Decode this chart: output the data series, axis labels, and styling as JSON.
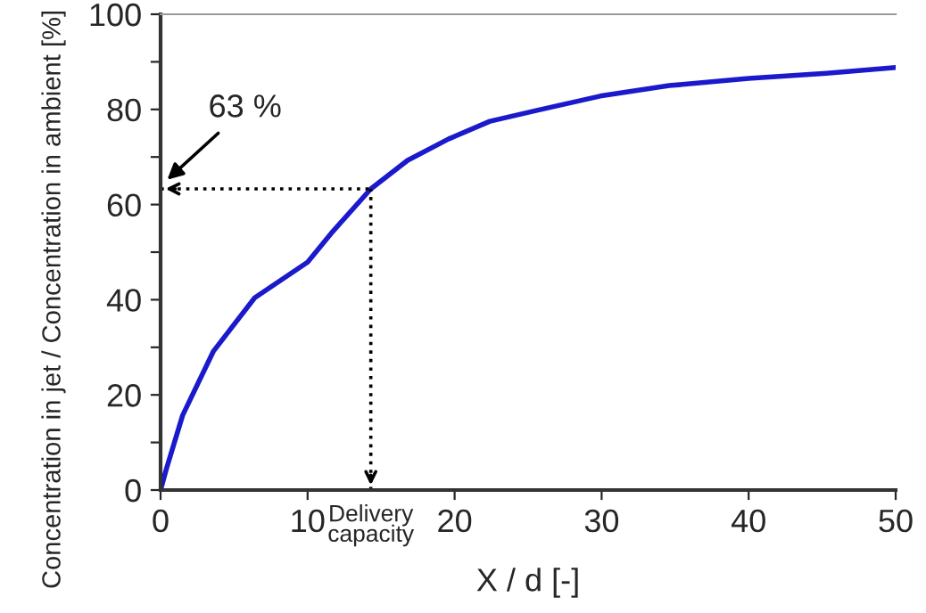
{
  "chart_data": {
    "type": "line",
    "xlabel": "X / d [-]",
    "ylabel": "Concentration in jet / Concentration in ambient [%]",
    "x": [
      0,
      0.4,
      1.5,
      3.6,
      6.4,
      10,
      11.7,
      14.3,
      16.8,
      19.6,
      22.4,
      25.6,
      29.9,
      34.6,
      40,
      45.3,
      50
    ],
    "series": [
      {
        "color": "#1a1acc",
        "values": [
          0,
          4.5,
          15.7,
          29.2,
          40.4,
          47.9,
          54.3,
          63.3,
          69.3,
          73.8,
          77.5,
          79.8,
          82.8,
          85.0,
          86.5,
          87.6,
          88.8
        ]
      }
    ],
    "xlim": [
      0,
      50
    ],
    "xticks": [
      0,
      10,
      20,
      30,
      40,
      50
    ],
    "ylim": [
      0,
      100
    ],
    "yticks": [
      0,
      {
        "value": 10,
        "label": null
      },
      20,
      {
        "value": 30,
        "label": null
      },
      40,
      {
        "value": 50,
        "label": null
      },
      60,
      {
        "value": 70,
        "label": null
      },
      80,
      {
        "value": 90,
        "label": null
      },
      100
    ],
    "ref_lines": [
      {
        "axis": "y",
        "value": 63.3,
        "line_style": "dotted",
        "color": "#000000"
      },
      {
        "axis": "x",
        "value": 14.3,
        "label": "Delivery\ncapacity",
        "line_style": "dotted",
        "color": "#000000"
      }
    ],
    "annotations": [
      "63 %"
    ],
    "grid": false,
    "legend": false,
    "marker": "none",
    "line_style": "solid"
  }
}
